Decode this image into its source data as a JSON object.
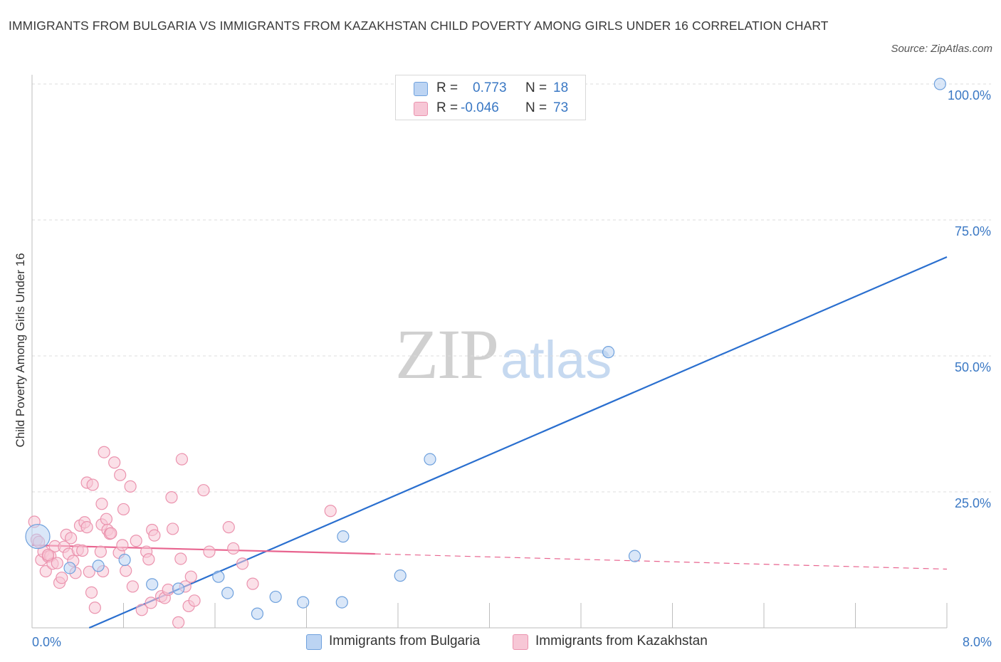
{
  "chart_data": {
    "type": "scatter",
    "title": "IMMIGRANTS FROM BULGARIA VS IMMIGRANTS FROM KAZAKHSTAN CHILD POVERTY AMONG GIRLS UNDER 16 CORRELATION CHART",
    "source": "Source: ZipAtlas.com",
    "xlabel": "",
    "ylabel": "Child Poverty Among Girls Under 16",
    "xlim": [
      0,
      8
    ],
    "ylim": [
      0,
      100
    ],
    "x_tick_labels": [
      "0.0%",
      "8.0%"
    ],
    "y_ticks": [
      25,
      50,
      75,
      100
    ],
    "y_tick_labels": [
      "25.0%",
      "50.0%",
      "75.0%",
      "100.0%"
    ],
    "watermark": {
      "zip": "ZIP",
      "atlas": "atlas"
    },
    "legend": [
      {
        "r_label": "R =",
        "r_value": "0.773",
        "n_label": "N =",
        "n_value": "18"
      },
      {
        "r_label": "R =",
        "r_value": "-0.046",
        "n_label": "N =",
        "n_value": "73"
      }
    ],
    "series": [
      {
        "name": "Immigrants from Bulgaria",
        "color": "#6fa1dd",
        "fill": "#bcd4f3",
        "trend_color": "#2a6fcf",
        "trend": {
          "x_start": 0.5,
          "y_start": 0,
          "x_end": 8.0,
          "y_end": 68.2
        },
        "points": [
          {
            "x": 0.05,
            "y": 16.8,
            "big": true
          },
          {
            "x": 0.33,
            "y": 11.0
          },
          {
            "x": 0.58,
            "y": 11.4
          },
          {
            "x": 0.81,
            "y": 12.5
          },
          {
            "x": 1.05,
            "y": 8.0
          },
          {
            "x": 1.28,
            "y": 7.2
          },
          {
            "x": 1.63,
            "y": 9.4
          },
          {
            "x": 1.71,
            "y": 6.4
          },
          {
            "x": 1.97,
            "y": 2.6
          },
          {
            "x": 2.13,
            "y": 5.7
          },
          {
            "x": 2.37,
            "y": 4.7
          },
          {
            "x": 2.71,
            "y": 4.7
          },
          {
            "x": 2.72,
            "y": 16.8
          },
          {
            "x": 3.22,
            "y": 9.6
          },
          {
            "x": 3.48,
            "y": 31.0
          },
          {
            "x": 5.04,
            "y": 50.7
          },
          {
            "x": 5.27,
            "y": 13.2
          },
          {
            "x": 7.94,
            "y": 100.0
          }
        ]
      },
      {
        "name": "Immigrants from Kazakhstan",
        "color": "#eb93ae",
        "fill": "#f7c7d6",
        "trend_color": "#e8648f",
        "trend": {
          "x_start": 0.0,
          "y_start": 15.2,
          "x_end": 3.0,
          "y_end": 13.6,
          "dash_x_end": 8.0,
          "dash_y_end": 10.8
        },
        "points": [
          {
            "x": 0.02,
            "y": 19.5
          },
          {
            "x": 0.04,
            "y": 16.2
          },
          {
            "x": 0.06,
            "y": 15.8
          },
          {
            "x": 0.08,
            "y": 12.5
          },
          {
            "x": 0.1,
            "y": 14.0
          },
          {
            "x": 0.12,
            "y": 10.4
          },
          {
            "x": 0.14,
            "y": 13.1
          },
          {
            "x": 0.16,
            "y": 13.2
          },
          {
            "x": 0.18,
            "y": 11.8
          },
          {
            "x": 0.2,
            "y": 15.0
          },
          {
            "x": 0.22,
            "y": 11.9
          },
          {
            "x": 0.24,
            "y": 8.3
          },
          {
            "x": 0.26,
            "y": 9.2
          },
          {
            "x": 0.28,
            "y": 14.9
          },
          {
            "x": 0.3,
            "y": 17.1
          },
          {
            "x": 0.32,
            "y": 13.6
          },
          {
            "x": 0.34,
            "y": 16.5
          },
          {
            "x": 0.36,
            "y": 12.3
          },
          {
            "x": 0.38,
            "y": 10.1
          },
          {
            "x": 0.4,
            "y": 14.3
          },
          {
            "x": 0.42,
            "y": 18.8
          },
          {
            "x": 0.44,
            "y": 14.2
          },
          {
            "x": 0.46,
            "y": 19.4
          },
          {
            "x": 0.48,
            "y": 18.5
          },
          {
            "x": 0.48,
            "y": 26.7
          },
          {
            "x": 0.5,
            "y": 10.3
          },
          {
            "x": 0.52,
            "y": 6.5
          },
          {
            "x": 0.53,
            "y": 26.3
          },
          {
            "x": 0.55,
            "y": 3.7
          },
          {
            "x": 0.6,
            "y": 14.0
          },
          {
            "x": 0.61,
            "y": 19.0
          },
          {
            "x": 0.61,
            "y": 22.8
          },
          {
            "x": 0.62,
            "y": 10.4
          },
          {
            "x": 0.63,
            "y": 32.3
          },
          {
            "x": 0.65,
            "y": 20.0
          },
          {
            "x": 0.66,
            "y": 18.0
          },
          {
            "x": 0.68,
            "y": 17.3
          },
          {
            "x": 0.69,
            "y": 17.4
          },
          {
            "x": 0.72,
            "y": 30.4
          },
          {
            "x": 0.76,
            "y": 13.8
          },
          {
            "x": 0.77,
            "y": 28.1
          },
          {
            "x": 0.79,
            "y": 15.2
          },
          {
            "x": 0.8,
            "y": 21.8
          },
          {
            "x": 0.82,
            "y": 10.5
          },
          {
            "x": 0.86,
            "y": 26.0
          },
          {
            "x": 0.88,
            "y": 7.6
          },
          {
            "x": 0.91,
            "y": 16.0
          },
          {
            "x": 0.96,
            "y": 3.3
          },
          {
            "x": 1.0,
            "y": 14.0
          },
          {
            "x": 1.02,
            "y": 12.6
          },
          {
            "x": 1.04,
            "y": 4.6
          },
          {
            "x": 1.05,
            "y": 18.0
          },
          {
            "x": 1.07,
            "y": 17.0
          },
          {
            "x": 1.13,
            "y": 5.8
          },
          {
            "x": 1.16,
            "y": 5.5
          },
          {
            "x": 1.19,
            "y": 7.0
          },
          {
            "x": 1.22,
            "y": 24.0
          },
          {
            "x": 1.23,
            "y": 18.2
          },
          {
            "x": 1.28,
            "y": 1.0
          },
          {
            "x": 1.3,
            "y": 12.7
          },
          {
            "x": 1.31,
            "y": 31.0
          },
          {
            "x": 1.34,
            "y": 7.6
          },
          {
            "x": 1.37,
            "y": 4.0
          },
          {
            "x": 1.39,
            "y": 9.4
          },
          {
            "x": 1.42,
            "y": 5.0
          },
          {
            "x": 1.5,
            "y": 25.3
          },
          {
            "x": 1.55,
            "y": 14.0
          },
          {
            "x": 1.72,
            "y": 18.5
          },
          {
            "x": 1.76,
            "y": 14.6
          },
          {
            "x": 1.84,
            "y": 11.8
          },
          {
            "x": 1.93,
            "y": 8.1
          },
          {
            "x": 2.61,
            "y": 21.5
          },
          {
            "x": 0.14,
            "y": 13.4
          }
        ]
      }
    ]
  }
}
